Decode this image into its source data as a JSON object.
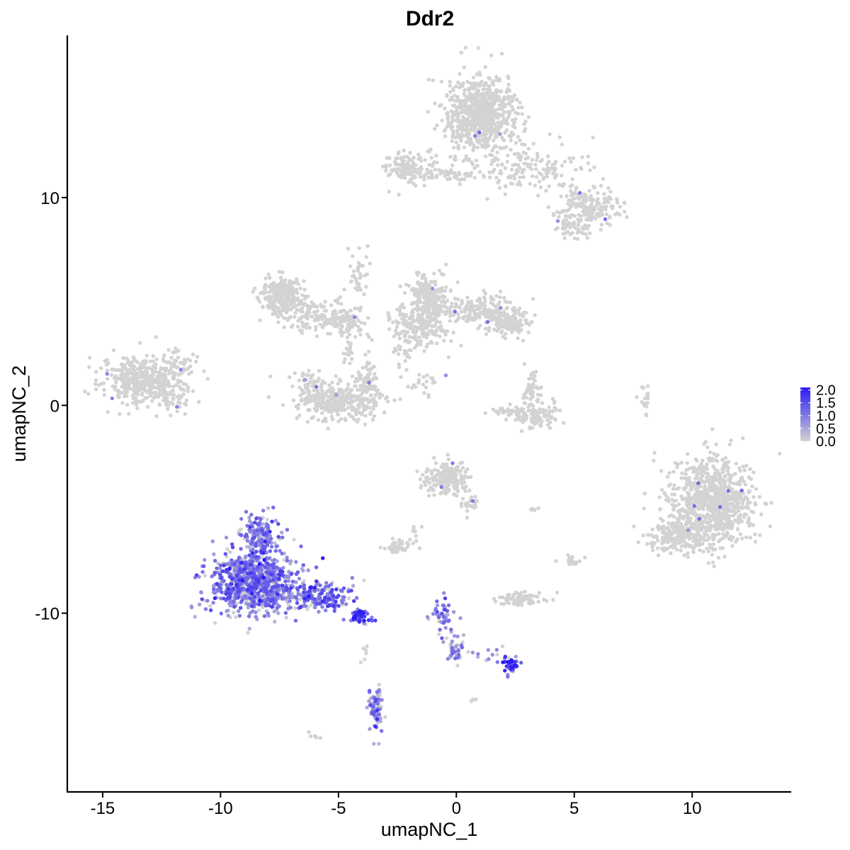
{
  "chart_data": {
    "type": "scatter",
    "title": "Ddr2",
    "xlabel": "umapNC_1",
    "ylabel": "umapNC_2",
    "xlim": [
      -16.5,
      14.2
    ],
    "ylim": [
      -18.6,
      17.8
    ],
    "x_ticks": [
      -15,
      -10,
      -5,
      0,
      5,
      10
    ],
    "x_tick_labels": [
      "-15",
      "-10",
      "-5",
      "0",
      "5",
      "10"
    ],
    "y_ticks": [
      -10,
      0,
      10
    ],
    "y_tick_labels": [
      "-10",
      "0",
      "10"
    ],
    "grid": false,
    "legend": {
      "type": "colorbar",
      "placement": "right",
      "min": 0,
      "max": 2.1,
      "low_color": "#d3d3d3",
      "high_color": "#2a1af5",
      "ticks": [
        0,
        0.5,
        1,
        1.5,
        2
      ],
      "tick_labels": [
        "0.0",
        "0.5",
        "1.0",
        "1.5",
        "2.0"
      ]
    },
    "point_color_background": "#d3d3d3",
    "clusters": [
      {
        "cx": 1.0,
        "cy": 14.0,
        "sx": 0.85,
        "sy": 1.1,
        "n": 750,
        "expr": 0
      },
      {
        "cx": -2.0,
        "cy": 11.4,
        "sx": 0.7,
        "sy": 0.45,
        "n": 130,
        "expr": 0
      },
      {
        "cx": 0.0,
        "cy": 11.1,
        "sx": 1.3,
        "sy": 0.25,
        "n": 60,
        "expr": 0
      },
      {
        "cx": 3.5,
        "cy": 11.4,
        "sx": 1.5,
        "sy": 0.7,
        "n": 140,
        "expr": 0
      },
      {
        "cx": 5.6,
        "cy": 9.6,
        "sx": 0.8,
        "sy": 0.55,
        "n": 180,
        "expr": 0
      },
      {
        "cx": 4.9,
        "cy": 8.6,
        "sx": 0.45,
        "sy": 0.3,
        "n": 45,
        "expr": 0
      },
      {
        "cx": -13.3,
        "cy": 1.2,
        "sx": 1.0,
        "sy": 0.7,
        "n": 420,
        "expr": 0
      },
      {
        "cx": -11.8,
        "cy": 1.8,
        "sx": 0.5,
        "sy": 0.6,
        "n": 45,
        "expr": 0
      },
      {
        "cx": -12.2,
        "cy": 0.1,
        "sx": 0.4,
        "sy": 0.2,
        "n": 30,
        "expr": 0
      },
      {
        "cx": -7.4,
        "cy": 5.3,
        "sx": 0.55,
        "sy": 0.45,
        "n": 230,
        "expr": 0
      },
      {
        "cx": -6.0,
        "cy": 4.3,
        "sx": 1.0,
        "sy": 0.5,
        "n": 150,
        "expr": 0
      },
      {
        "cx": -4.6,
        "cy": 3.9,
        "sx": 0.5,
        "sy": 0.35,
        "n": 60,
        "expr": 0
      },
      {
        "cx": -4.2,
        "cy": 6.0,
        "sx": 0.25,
        "sy": 1.3,
        "n": 40,
        "expr": 0
      },
      {
        "cx": -4.6,
        "cy": 2.5,
        "sx": 0.15,
        "sy": 0.7,
        "n": 22,
        "expr": 0
      },
      {
        "cx": -5.0,
        "cy": 0.2,
        "sx": 1.1,
        "sy": 0.55,
        "n": 330,
        "expr": 0
      },
      {
        "cx": -6.2,
        "cy": 0.9,
        "sx": 0.25,
        "sy": 0.5,
        "n": 60,
        "expr": 0
      },
      {
        "cx": -3.8,
        "cy": 1.2,
        "sx": 0.3,
        "sy": 0.5,
        "n": 60,
        "expr": 0
      },
      {
        "cx": -1.2,
        "cy": 5.2,
        "sx": 0.45,
        "sy": 0.65,
        "n": 220,
        "expr": 0
      },
      {
        "cx": -1.5,
        "cy": 3.8,
        "sx": 0.8,
        "sy": 0.6,
        "n": 210,
        "expr": 0
      },
      {
        "cx": 0.8,
        "cy": 4.6,
        "sx": 0.9,
        "sy": 0.4,
        "n": 160,
        "expr": 0
      },
      {
        "cx": 2.2,
        "cy": 4.0,
        "sx": 0.5,
        "sy": 0.4,
        "n": 150,
        "expr": 0
      },
      {
        "cx": -2.2,
        "cy": 2.7,
        "sx": 0.25,
        "sy": 0.5,
        "n": 22,
        "expr": 0
      },
      {
        "cx": -1.5,
        "cy": 1.0,
        "sx": 0.55,
        "sy": 0.3,
        "n": 22,
        "expr": 0
      },
      {
        "cx": 3.2,
        "cy": 0.8,
        "sx": 0.2,
        "sy": 0.5,
        "n": 40,
        "expr": 0
      },
      {
        "cx": 3.3,
        "cy": -0.5,
        "sx": 0.6,
        "sy": 0.35,
        "n": 110,
        "expr": 0
      },
      {
        "cx": 2.3,
        "cy": -0.3,
        "sx": 0.45,
        "sy": 0.2,
        "n": 30,
        "expr": 0
      },
      {
        "cx": 8.0,
        "cy": 0.2,
        "sx": 0.15,
        "sy": 0.5,
        "n": 18,
        "expr": 0
      },
      {
        "cx": 10.8,
        "cy": -4.7,
        "sx": 1.05,
        "sy": 1.25,
        "n": 850,
        "expr": 0
      },
      {
        "cx": 9.3,
        "cy": -6.3,
        "sx": 0.7,
        "sy": 0.45,
        "n": 180,
        "expr": 0
      },
      {
        "cx": -0.4,
        "cy": -3.5,
        "sx": 0.55,
        "sy": 0.45,
        "n": 180,
        "expr": 0
      },
      {
        "cx": 0.6,
        "cy": -4.7,
        "sx": 0.25,
        "sy": 0.45,
        "n": 25,
        "expr": 0
      },
      {
        "cx": -2.5,
        "cy": -6.8,
        "sx": 0.3,
        "sy": 0.2,
        "n": 45,
        "expr": 0
      },
      {
        "cx": -1.8,
        "cy": -6.2,
        "sx": 0.15,
        "sy": 0.35,
        "n": 10,
        "expr": 0
      },
      {
        "cx": 2.7,
        "cy": -9.3,
        "sx": 0.6,
        "sy": 0.15,
        "n": 85,
        "expr": 0
      },
      {
        "cx": 5.0,
        "cy": -7.4,
        "sx": 0.3,
        "sy": 0.15,
        "n": 18,
        "expr": 0
      },
      {
        "cx": 3.2,
        "cy": -5.0,
        "sx": 0.15,
        "sy": 0.1,
        "n": 6,
        "expr": 0
      },
      {
        "cx": -6.0,
        "cy": -15.9,
        "sx": 0.2,
        "sy": 0.1,
        "n": 6,
        "expr": 0
      },
      {
        "cx": 0.7,
        "cy": -14.2,
        "sx": 0.1,
        "sy": 0.08,
        "n": 4,
        "expr": 0
      },
      {
        "cx": -3.9,
        "cy": -12.0,
        "sx": 0.1,
        "sy": 0.4,
        "n": 6,
        "expr": 0
      },
      {
        "cx": -8.6,
        "cy": -8.6,
        "sx": 1.05,
        "sy": 0.85,
        "n": 900,
        "expr": 0.95
      },
      {
        "cx": -8.3,
        "cy": -6.3,
        "sx": 0.45,
        "sy": 0.6,
        "n": 170,
        "expr": 0.9
      },
      {
        "cx": -5.7,
        "cy": -9.2,
        "sx": 0.75,
        "sy": 0.4,
        "n": 170,
        "expr": 1.1
      },
      {
        "cx": -4.1,
        "cy": -10.2,
        "sx": 0.3,
        "sy": 0.2,
        "n": 50,
        "expr": 1.45
      },
      {
        "cx": -3.4,
        "cy": -14.6,
        "sx": 0.18,
        "sy": 0.6,
        "n": 75,
        "expr": 0.85
      },
      {
        "cx": -0.6,
        "cy": -10.2,
        "sx": 0.25,
        "sy": 0.6,
        "n": 45,
        "expr": 0.9
      },
      {
        "cx": -0.1,
        "cy": -11.7,
        "sx": 0.22,
        "sy": 0.35,
        "n": 40,
        "expr": 0.75
      },
      {
        "cx": 2.3,
        "cy": -12.5,
        "sx": 0.22,
        "sy": 0.22,
        "n": 40,
        "expr": 1.6
      },
      {
        "cx": 1.4,
        "cy": -12.0,
        "sx": 0.45,
        "sy": 0.2,
        "n": 12,
        "expr": 0.5
      }
    ]
  }
}
